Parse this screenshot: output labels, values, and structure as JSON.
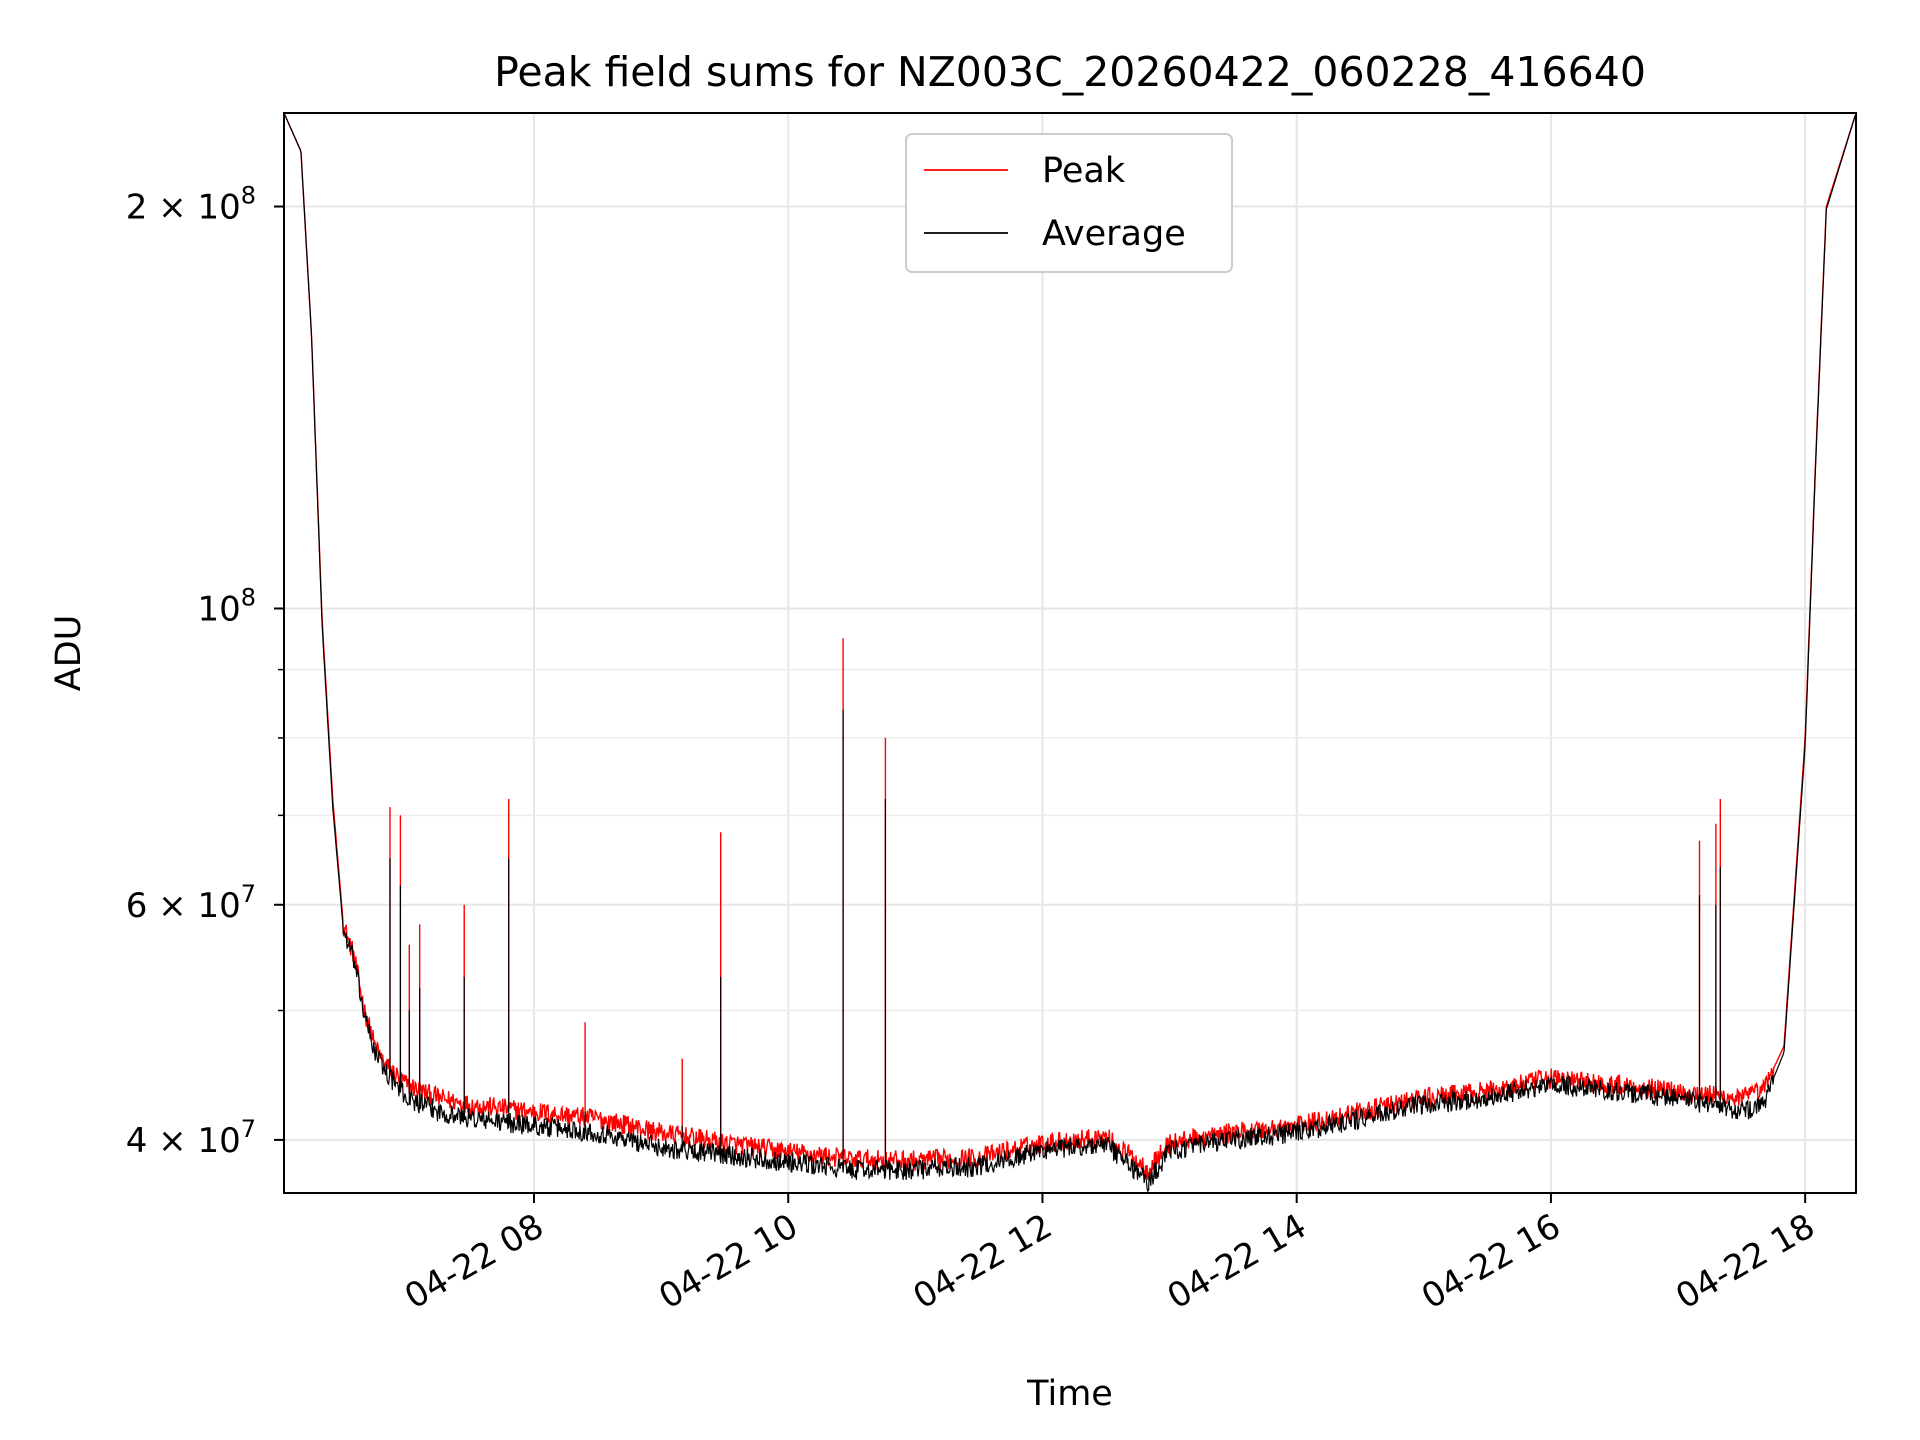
{
  "chart_data": {
    "type": "line",
    "title": "Peak field sums for NZ003C_20260422_060228_416640",
    "xlabel": "Time",
    "ylabel": "ADU",
    "yscale": "log",
    "xlim": [
      "2026-04-22 06:02",
      "2026-04-22 18:24"
    ],
    "ylim": [
      36500000,
      235000000
    ],
    "grid": true,
    "legend": "upper center",
    "x_ticks": [
      "04-22 08",
      "04-22 10",
      "04-22 12",
      "04-22 14",
      "04-22 16",
      "04-22 18"
    ],
    "y_ticks": [
      {
        "value": 40000000,
        "label": "4 × 10",
        "exp": "7"
      },
      {
        "value": 60000000,
        "label": "6 × 10",
        "exp": "7"
      },
      {
        "value": 100000000,
        "label": "10",
        "exp": "8"
      },
      {
        "value": 200000000,
        "label": "2 × 10",
        "exp": "8"
      }
    ],
    "y_minor_ticks": [
      50000000,
      70000000,
      80000000,
      90000000
    ],
    "x": [
      "2026-04-22 06:02",
      "2026-04-22 06:10",
      "2026-04-22 06:15",
      "2026-04-22 06:20",
      "2026-04-22 06:25",
      "2026-04-22 06:30",
      "2026-04-22 06:35",
      "2026-04-22 06:40",
      "2026-04-22 06:45",
      "2026-04-22 06:50",
      "2026-04-22 07:00",
      "2026-04-22 07:15",
      "2026-04-22 07:30",
      "2026-04-22 08:00",
      "2026-04-22 08:30",
      "2026-04-22 09:00",
      "2026-04-22 09:30",
      "2026-04-22 10:00",
      "2026-04-22 10:30",
      "2026-04-22 11:00",
      "2026-04-22 11:30",
      "2026-04-22 12:00",
      "2026-04-22 12:30",
      "2026-04-22 12:50",
      "2026-04-22 13:00",
      "2026-04-22 13:30",
      "2026-04-22 14:00",
      "2026-04-22 14:30",
      "2026-04-22 15:00",
      "2026-04-22 15:30",
      "2026-04-22 16:00",
      "2026-04-22 16:30",
      "2026-04-22 17:00",
      "2026-04-22 17:30",
      "2026-04-22 17:40",
      "2026-04-22 17:50",
      "2026-04-22 18:00",
      "2026-04-22 18:05",
      "2026-04-22 18:10",
      "2026-04-22 18:24"
    ],
    "series": [
      {
        "name": "Peak",
        "color": "#ff0000",
        "values": [
          235000000,
          220000000,
          160000000,
          98000000,
          72000000,
          58000000,
          55000000,
          50000000,
          47000000,
          45500000,
          44000000,
          43000000,
          42500000,
          42000000,
          41500000,
          40500000,
          39800000,
          39200000,
          38700000,
          38600000,
          38800000,
          39800000,
          40200000,
          38000000,
          39800000,
          40500000,
          41000000,
          42000000,
          43000000,
          43500000,
          44500000,
          44000000,
          43500000,
          43000000,
          43500000,
          47000000,
          80000000,
          130000000,
          200000000,
          235000000
        ]
      },
      {
        "name": "Average",
        "color": "#000000",
        "values": [
          235000000,
          220000000,
          160000000,
          97000000,
          71000000,
          57500000,
          54500000,
          49500000,
          46500000,
          45000000,
          43000000,
          42000000,
          41500000,
          41000000,
          40500000,
          39500000,
          39000000,
          38500000,
          38000000,
          38000000,
          38200000,
          39300000,
          39700000,
          37200000,
          39300000,
          40000000,
          40500000,
          41500000,
          42500000,
          43000000,
          44000000,
          43500000,
          43000000,
          42000000,
          42500000,
          46500000,
          79000000,
          129000000,
          199000000,
          235000000
        ]
      }
    ],
    "spikes": [
      {
        "x": "2026-04-22 06:52",
        "peak": 71000000,
        "average": 65000000
      },
      {
        "x": "2026-04-22 06:57",
        "peak": 70000000,
        "average": 62000000
      },
      {
        "x": "2026-04-22 07:01",
        "peak": 56000000,
        "average": 50000000
      },
      {
        "x": "2026-04-22 07:06",
        "peak": 58000000,
        "average": 52000000
      },
      {
        "x": "2026-04-22 07:27",
        "peak": 60000000,
        "average": 53000000
      },
      {
        "x": "2026-04-22 07:48",
        "peak": 72000000,
        "average": 65000000
      },
      {
        "x": "2026-04-22 08:24",
        "peak": 49000000,
        "average": 42000000
      },
      {
        "x": "2026-04-22 09:10",
        "peak": 46000000,
        "average": 41000000
      },
      {
        "x": "2026-04-22 09:28",
        "peak": 68000000,
        "average": 53000000
      },
      {
        "x": "2026-04-22 10:26",
        "peak": 95000000,
        "average": 84000000
      },
      {
        "x": "2026-04-22 10:46",
        "peak": 80000000,
        "average": 72000000
      },
      {
        "x": "2026-04-22 17:10",
        "peak": 67000000,
        "average": 61000000
      },
      {
        "x": "2026-04-22 17:18",
        "peak": 69000000,
        "average": 60000000
      },
      {
        "x": "2026-04-22 17:20",
        "peak": 72000000,
        "average": 64000000
      }
    ]
  }
}
